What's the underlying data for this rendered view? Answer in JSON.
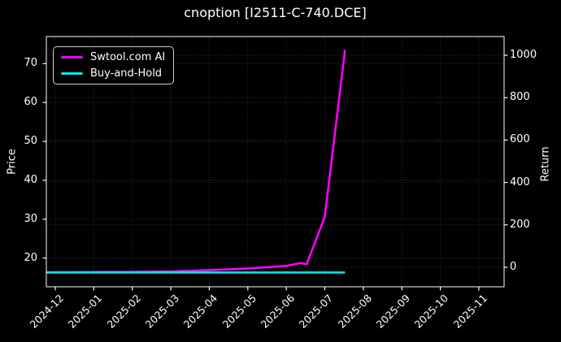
{
  "title": "cnoption [I2511-C-740.DCE]",
  "chart_data": {
    "type": "line",
    "title": "cnoption [I2511-C-740.DCE]",
    "background": "#000000",
    "grid": true,
    "legend_position": "upper-left",
    "x_tick_labels": [
      "2024-12",
      "2025-01",
      "2025-02",
      "2025-03",
      "2025-04",
      "2025-05",
      "2025-06",
      "2025-07",
      "2025-08",
      "2025-09",
      "2025-10",
      "2025-11"
    ],
    "left_axis": {
      "label": "Price",
      "ticks": [
        20,
        30,
        40,
        50,
        60,
        70
      ]
    },
    "right_axis": {
      "label": "Return",
      "ticks": [
        0,
        200,
        400,
        600,
        800,
        1000
      ]
    },
    "series": [
      {
        "name": "Swtool.com AI",
        "color": "#ff00ff",
        "axis": "left",
        "points": [
          [
            "2024-11-24",
            16.35
          ],
          [
            "2024-12-01",
            16.35
          ],
          [
            "2025-01-01",
            16.4
          ],
          [
            "2025-02-01",
            16.45
          ],
          [
            "2025-03-01",
            16.55
          ],
          [
            "2025-04-01",
            16.9
          ],
          [
            "2025-05-01",
            17.3
          ],
          [
            "2025-06-01",
            18.0
          ],
          [
            "2025-06-12",
            18.7
          ],
          [
            "2025-06-17",
            18.4
          ],
          [
            "2025-07-01",
            30.6
          ],
          [
            "2025-07-17",
            73.5
          ]
        ]
      },
      {
        "name": "Buy-and-Hold",
        "color": "#00e8e8",
        "axis": "left",
        "points": [
          [
            "2024-11-24",
            16.3
          ],
          [
            "2025-07-17",
            16.3
          ]
        ]
      }
    ]
  }
}
